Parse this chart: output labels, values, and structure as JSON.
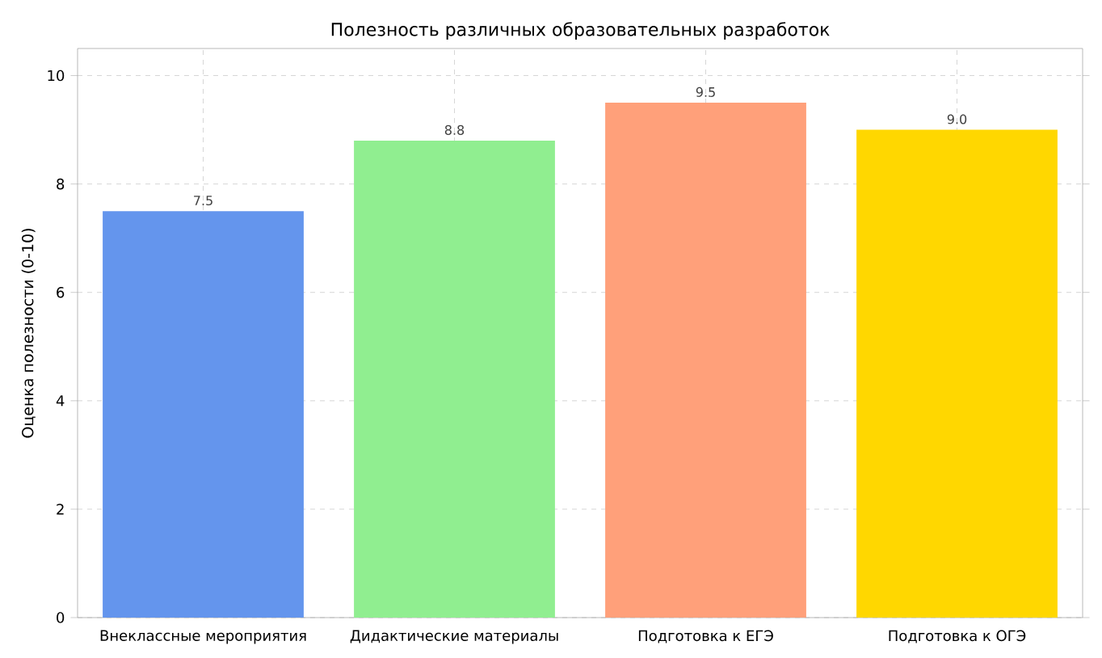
{
  "chart_data": {
    "type": "bar",
    "title": "Полезность различных образовательных разработок",
    "ylabel": "Оценка полезности (0-10)",
    "categories": [
      "Внеклассные мероприятия",
      "Дидактические материалы",
      "Подготовка к ЕГЭ",
      "Подготовка к ОГЭ"
    ],
    "values": [
      7.5,
      8.8,
      9.5,
      9.0
    ],
    "colors": [
      "#6495ed",
      "#90ee90",
      "#ffa07a",
      "#ffd700"
    ],
    "ylim": [
      0,
      10.5
    ],
    "yticks": [
      0,
      2,
      4,
      6,
      8,
      10
    ],
    "grid": true,
    "value_labels": [
      "7.5",
      "8.8",
      "9.5",
      "9.0"
    ]
  }
}
